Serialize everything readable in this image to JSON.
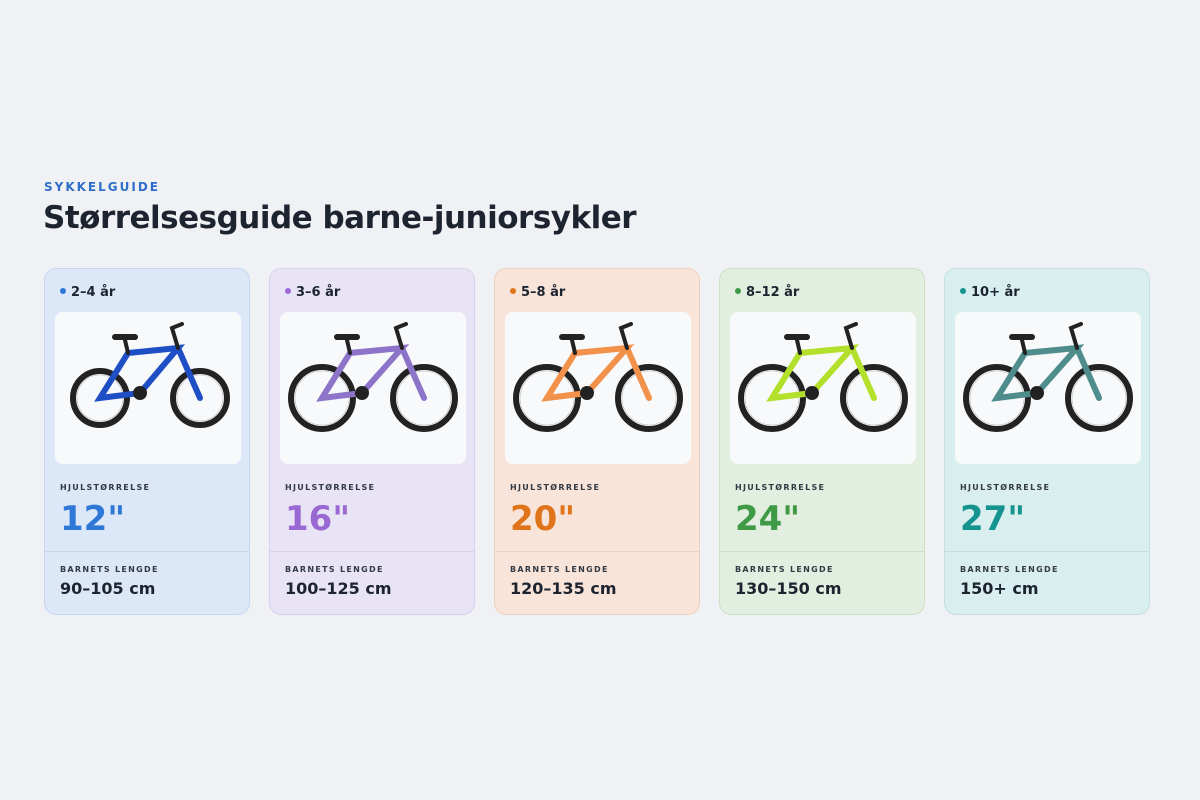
{
  "header": {
    "eyebrow": "SYKKELGUIDE",
    "title": "Størrelsesguide barne-juniorsykler"
  },
  "cards": [
    {
      "age": "2–4 år",
      "wheel_label": "HJULSTØRRELSE",
      "wheel_size": "12\"",
      "length_label": "BARNETS LENGDE",
      "length": "90–105 cm"
    },
    {
      "age": "3–6 år",
      "wheel_label": "HJULSTØRRELSE",
      "wheel_size": "16\"",
      "length_label": "BARNETS LENGDE",
      "length": "100–125 cm"
    },
    {
      "age": "5–8 år",
      "wheel_label": "HJULSTØRRELSE",
      "wheel_size": "20\"",
      "length_label": "BARNETS LENGDE",
      "length": "120–135 cm"
    },
    {
      "age": "8–12 år",
      "wheel_label": "HJULSTØRRELSE",
      "wheel_size": "24\"",
      "length_label": "BARNETS LENGDE",
      "length": "130–150 cm"
    },
    {
      "age": "10+ år",
      "wheel_label": "HJULSTØRRELSE",
      "wheel_size": "27\"",
      "length_label": "BARNETS LENGDE",
      "length": "150+ cm"
    }
  ]
}
